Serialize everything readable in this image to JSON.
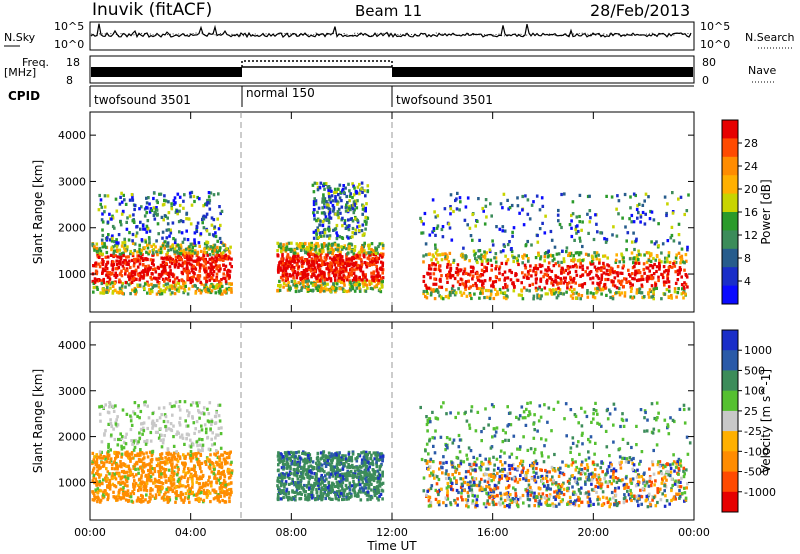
{
  "header": {
    "station": "Inuvik (fitACF)",
    "beam": "Beam 11",
    "date": "28/Feb/2013"
  },
  "top_panels": {
    "nsky_label": "N.Sky",
    "nsearch_label": "N.Search",
    "nsky_ticks": [
      "10^5",
      "10^0"
    ],
    "nsearch_ticks": [
      "10^5",
      "10^0"
    ],
    "freq_label_1": "Freq.",
    "freq_label_2": "[MHz]",
    "freq_ticks": [
      "18",
      "8"
    ],
    "nave_label": "Nave",
    "nave_ticks": [
      "80",
      "0"
    ],
    "cpid_label": "CPID",
    "cpid_segments": [
      {
        "label": "twofsound 3501",
        "start": 0,
        "end": 6
      },
      {
        "label": "normal 150",
        "start": 6,
        "end": 12
      },
      {
        "label": "twofsound 3501",
        "start": 12,
        "end": 24
      }
    ]
  },
  "chart_data": [
    {
      "type": "heatmap",
      "title": "",
      "parameter": "Power",
      "xlabel": "Time UT",
      "ylabel": "Slant Range [km]",
      "xlim": [
        0,
        24
      ],
      "ylim": [
        180,
        4500
      ],
      "x_ticks": [
        "00:00",
        "04:00",
        "08:00",
        "12:00",
        "16:00",
        "20:00",
        "00:00"
      ],
      "y_ticks": [
        "1000",
        "2000",
        "3000",
        "4000"
      ],
      "mode_change_hours": [
        6,
        12
      ],
      "colorbar": {
        "label": "Power [dB]",
        "tick_labels": [
          "28",
          "24",
          "20",
          "16",
          "12",
          "8",
          "4"
        ],
        "colors": [
          "#e60000",
          "#ff4a00",
          "#ff8c00",
          "#ffb000",
          "#c8d400",
          "#2a9a2a",
          "#3c8c5a",
          "#275c8c",
          "#1a2ec8",
          "#0a0aff"
        ]
      },
      "echo_regions": [
        {
          "t_start": 0.0,
          "t_end": 5.6,
          "r_min": 600,
          "r_max": 1700,
          "level": "strong"
        },
        {
          "t_start": 0.3,
          "t_end": 5.2,
          "r_min": 1700,
          "r_max": 2800,
          "level": "weak"
        },
        {
          "t_start": 7.4,
          "t_end": 11.6,
          "r_min": 650,
          "r_max": 1700,
          "level": "strong"
        },
        {
          "t_start": 8.8,
          "t_end": 11.0,
          "r_min": 1800,
          "r_max": 3000,
          "level": "weak"
        },
        {
          "t_start": 13.2,
          "t_end": 23.7,
          "r_min": 500,
          "r_max": 1500,
          "level": "strong"
        },
        {
          "t_start": 13.0,
          "t_end": 23.8,
          "r_min": 1500,
          "r_max": 2800,
          "level": "weak"
        }
      ]
    },
    {
      "type": "heatmap",
      "title": "",
      "parameter": "Velocity",
      "xlabel": "Time UT",
      "ylabel": "Slant Range [km]",
      "xlim": [
        0,
        24
      ],
      "ylim": [
        180,
        4500
      ],
      "x_ticks": [
        "00:00",
        "04:00",
        "08:00",
        "12:00",
        "16:00",
        "20:00",
        "00:00"
      ],
      "y_ticks": [
        "1000",
        "2000",
        "3000",
        "4000"
      ],
      "mode_change_hours": [
        6,
        12
      ],
      "colorbar": {
        "label": "Velocity [m s^-1]",
        "tick_labels": [
          "1000",
          "500",
          "100",
          "25",
          "-25",
          "-100",
          "-500",
          "-1000"
        ],
        "colors": [
          "#1a2ec8",
          "#2a5aa8",
          "#3c8c5a",
          "#55c030",
          "#c8c8c8",
          "#ffb000",
          "#ff8c00",
          "#ff4a00",
          "#e60000"
        ]
      },
      "echo_regions": [
        {
          "t_start": 0.0,
          "t_end": 5.6,
          "r_min": 600,
          "r_max": 1700,
          "level": "negative"
        },
        {
          "t_start": 0.3,
          "t_end": 5.2,
          "r_min": 1700,
          "r_max": 2800,
          "level": "near-zero"
        },
        {
          "t_start": 7.4,
          "t_end": 11.6,
          "r_min": 650,
          "r_max": 1700,
          "level": "positive"
        },
        {
          "t_start": 13.2,
          "t_end": 23.7,
          "r_min": 500,
          "r_max": 1500,
          "level": "mixed"
        },
        {
          "t_start": 13.0,
          "t_end": 23.8,
          "r_min": 1500,
          "r_max": 2800,
          "level": "positive-weak"
        }
      ]
    }
  ]
}
